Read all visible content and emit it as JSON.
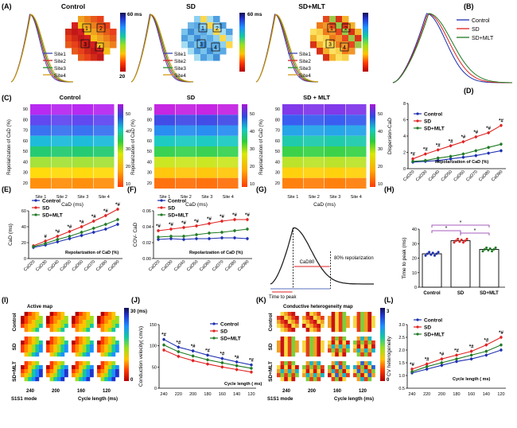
{
  "colors": {
    "control": "#1d2fb0",
    "sd": "#e02222",
    "mlt": "#1f7a24",
    "site1": "#3b49b8",
    "site2": "#d42828",
    "site3": "#27952c",
    "site4": "#d69a11",
    "trace": "#222222"
  },
  "panel_labels": [
    "(A)",
    "(B)",
    "(C)",
    "(D)",
    "(E)",
    "(F)",
    "(G)",
    "(H)",
    "(I)",
    "(J)",
    "(K)",
    "(L)"
  ],
  "common": {
    "groups": [
      "Control",
      "SD",
      "SD+MLT"
    ],
    "sites": [
      "Site1",
      "Site2",
      "Site3",
      "Site4"
    ],
    "site_ticks": [
      "Site 1",
      "Site 2",
      "Site 3",
      "Site 4"
    ],
    "cad_ticks": [
      "CaD20",
      "CaD30",
      "CaD40",
      "CaD50",
      "CaD60",
      "CaD70",
      "CaD80",
      "CaD90"
    ],
    "cl_ticks": [
      "240",
      "220",
      "200",
      "180",
      "160",
      "140",
      "120"
    ],
    "repol_note": "Repolarization of CaD (%)",
    "cycle_note": "Cycle length ( ms)",
    "map_cl": [
      "240",
      "200",
      "160",
      "120"
    ],
    "s1s1": "S1S1 mode",
    "cl_axis": "Cycle length (ms)"
  },
  "panelA": {
    "titles": [
      "Control",
      "SD",
      "SD+MLT"
    ],
    "scale_top": "60 ms",
    "scale_bottom": "20",
    "box_numbers": [
      "1",
      "2",
      "3",
      "4"
    ]
  },
  "panelC": {
    "titles": [
      "Control",
      "SD",
      "SD + MLT"
    ],
    "ylabel": "Repolarization of CaD (%)",
    "xlabel": "CaD (ms)",
    "yticks": [
      "90",
      "80",
      "70",
      "60",
      "50",
      "40",
      "30",
      "20"
    ],
    "cbar_ticks": [
      "50",
      "40",
      "30",
      "20",
      "10"
    ]
  },
  "panelG": {
    "label_cad": "CaD80",
    "label_repol": "80% repolarization",
    "label_ttp": "Time to peak"
  },
  "panelI": {
    "title": "Active map",
    "scale_top": "30 (ms)",
    "scale_bottom": "0"
  },
  "panelK": {
    "title": "Conductive heterogeneity map",
    "scale_top": "3",
    "scale_bottom": "0"
  },
  "chart_data": [
    {
      "panel": "D",
      "type": "line",
      "ylabel": "Dispersion-CaD",
      "xlabel": "Repolarization of CaD (%)",
      "categories": [
        "CaD20",
        "CaD30",
        "CaD40",
        "CaD50",
        "CaD60",
        "CaD70",
        "CaD80",
        "CaD90"
      ],
      "ylim": [
        0,
        8
      ],
      "yticks": [
        0,
        2,
        4,
        6,
        8
      ],
      "series": [
        {
          "name": "Control",
          "values": [
            0.8,
            0.9,
            1.0,
            1.2,
            1.4,
            1.6,
            1.9,
            2.2
          ]
        },
        {
          "name": "SD",
          "values": [
            1.2,
            1.8,
            2.3,
            2.8,
            3.3,
            3.9,
            4.4,
            5.3
          ]
        },
        {
          "name": "SD+MLT",
          "values": [
            0.9,
            1.0,
            1.3,
            1.5,
            1.8,
            2.2,
            2.6,
            3.0
          ]
        }
      ],
      "annotations": [
        "*#",
        "*#",
        "*#",
        "*#",
        "*#",
        "*#",
        "*#",
        "*#"
      ],
      "legend": "top-left"
    },
    {
      "panel": "E",
      "type": "line",
      "ylabel": "CaD (ms)",
      "xlabel": "Repolarization of CaD (%)",
      "categories": [
        "CaD20",
        "CaD30",
        "CaD40",
        "CaD50",
        "CaD60",
        "CaD70",
        "CaD80",
        "CaD90"
      ],
      "ylim": [
        0,
        60
      ],
      "yticks": [
        0,
        20,
        40,
        60
      ],
      "series": [
        {
          "name": "Control",
          "values": [
            14,
            17,
            21,
            25,
            29,
            33,
            37,
            43
          ]
        },
        {
          "name": "SD",
          "values": [
            16,
            22,
            28,
            34,
            40,
            47,
            54,
            62
          ]
        },
        {
          "name": "SD+MLT",
          "values": [
            15,
            19,
            24,
            28,
            33,
            38,
            43,
            49
          ]
        }
      ],
      "annotations": [
        "",
        "#",
        "*#",
        "*#",
        "*#",
        "*#",
        "*#",
        "*#"
      ],
      "legend": "top-left"
    },
    {
      "panel": "F",
      "type": "line",
      "ylabel": "COV- CaD",
      "xlabel": "Repolarization of CaD (%)",
      "categories": [
        "CaD20",
        "CaD30",
        "CaD40",
        "CaD50",
        "CaD60",
        "CaD70",
        "CaD80",
        "CaD90"
      ],
      "ylim": [
        0,
        0.06
      ],
      "yticks": [
        0.0,
        0.02,
        0.04,
        0.06
      ],
      "series": [
        {
          "name": "Control",
          "values": [
            0.024,
            0.025,
            0.024,
            0.025,
            0.025,
            0.026,
            0.026,
            0.025
          ]
        },
        {
          "name": "SD",
          "values": [
            0.035,
            0.037,
            0.039,
            0.041,
            0.044,
            0.047,
            0.049,
            0.049
          ]
        },
        {
          "name": "SD+MLT",
          "values": [
            0.027,
            0.028,
            0.028,
            0.03,
            0.032,
            0.033,
            0.035,
            0.037
          ]
        }
      ],
      "annotations": [
        "*#",
        "*#",
        "*#",
        "*#",
        "*#",
        "*#",
        "*#",
        "*#"
      ],
      "legend": "top-left"
    },
    {
      "panel": "H",
      "type": "bar",
      "ylabel": "Time to peak (ms)",
      "categories": [
        "Control",
        "SD",
        "SD+MLT"
      ],
      "values": [
        23,
        32,
        26
      ],
      "ylim": [
        0,
        40
      ],
      "yticks": [
        0,
        10,
        20,
        30,
        40
      ],
      "significance": [
        "*",
        "*",
        "*"
      ]
    },
    {
      "panel": "J",
      "type": "line",
      "ylabel": "Conduction velocity( cm/s)",
      "xlabel": "Cycle length ( ms)",
      "categories": [
        "240",
        "220",
        "200",
        "180",
        "160",
        "140",
        "120"
      ],
      "ylim": [
        0,
        150
      ],
      "yticks": [
        0,
        50,
        100,
        150
      ],
      "series": [
        {
          "name": "Control",
          "values": [
            115,
            97,
            88,
            78,
            70,
            62,
            55
          ]
        },
        {
          "name": "SD",
          "values": [
            90,
            75,
            65,
            57,
            50,
            44,
            38
          ]
        },
        {
          "name": "SD+MLT",
          "values": [
            102,
            86,
            76,
            67,
            60,
            53,
            47
          ]
        }
      ],
      "annotations": [
        "*#",
        "*#",
        "*#",
        "*#",
        "*#",
        "*#",
        "*#"
      ],
      "legend": "top-right"
    },
    {
      "panel": "L",
      "type": "line",
      "ylabel": "CV heterogeneity",
      "xlabel": "Cycle length ( ms)",
      "categories": [
        "240",
        "220",
        "200",
        "180",
        "160",
        "140",
        "120"
      ],
      "ylim": [
        0.5,
        3.0
      ],
      "yticks": [
        0.5,
        1.0,
        1.5,
        2.0,
        2.5,
        3.0
      ],
      "series": [
        {
          "name": "Control",
          "values": [
            1.1,
            1.25,
            1.4,
            1.55,
            1.65,
            1.8,
            2.0
          ]
        },
        {
          "name": "SD",
          "values": [
            1.25,
            1.45,
            1.65,
            1.8,
            1.95,
            2.2,
            2.5
          ]
        },
        {
          "name": "SD+MLT",
          "values": [
            1.15,
            1.35,
            1.5,
            1.65,
            1.8,
            1.95,
            2.2
          ]
        }
      ],
      "annotations": [
        "*#",
        "*#",
        "*#",
        "*#",
        "*#",
        "*#",
        "*#"
      ],
      "legend": "top-left"
    }
  ]
}
